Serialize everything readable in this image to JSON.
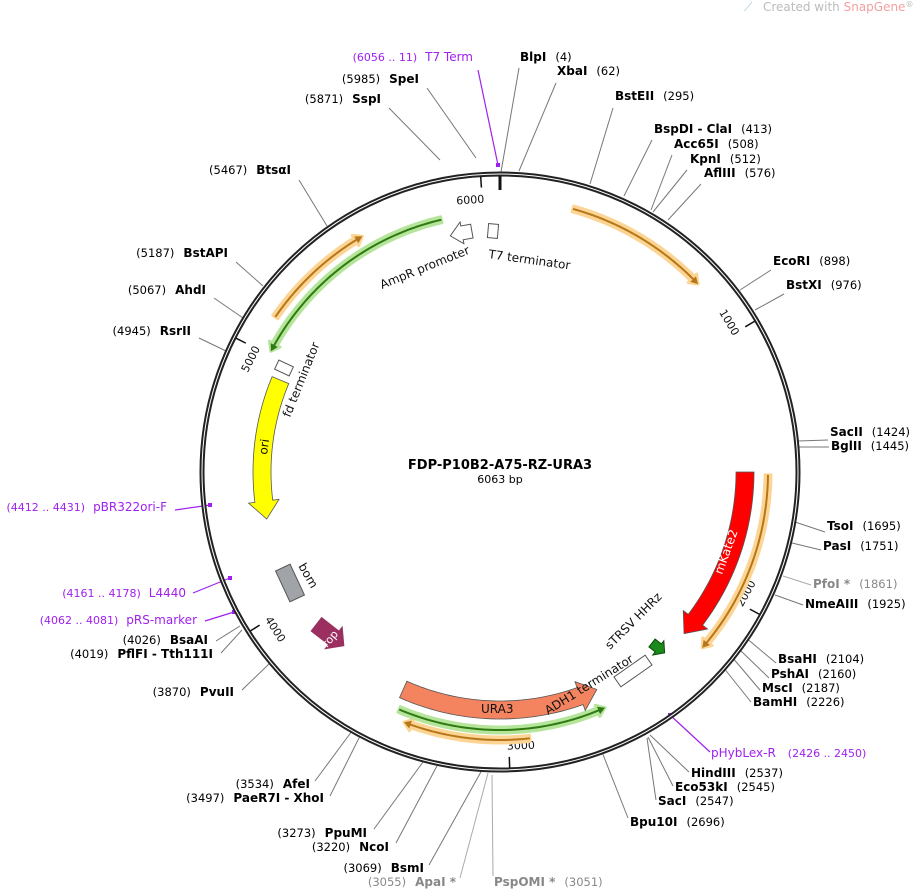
{
  "watermark": {
    "prefix": "Created with ",
    "brand": "SnapGene",
    "suffix": "®"
  },
  "plasmid": {
    "name": "FDP-P10B2-A75-RZ-URA3",
    "length_label": "6063 bp",
    "length": 6063
  },
  "ticks": [
    "1000",
    "2000",
    "3000",
    "4000",
    "5000",
    "6000"
  ],
  "enzymes": [
    {
      "name": "BlpI",
      "pos": "(4)"
    },
    {
      "name": "XbaI",
      "pos": "(62)"
    },
    {
      "name": "BstEII",
      "pos": "(295)"
    },
    {
      "name": "BspDI - ClaI",
      "pos": "(413)"
    },
    {
      "name": "Acc65I",
      "pos": "(508)"
    },
    {
      "name": "KpnI",
      "pos": "(512)"
    },
    {
      "name": "AflIII",
      "pos": "(576)"
    },
    {
      "name": "EcoRI",
      "pos": "(898)"
    },
    {
      "name": "BstXI",
      "pos": "(976)"
    },
    {
      "name": "SacII",
      "pos": "(1424)"
    },
    {
      "name": "BglII",
      "pos": "(1445)"
    },
    {
      "name": "TsoI",
      "pos": "(1695)"
    },
    {
      "name": "PasI",
      "pos": "(1751)"
    },
    {
      "name": "PfoI *",
      "pos": "(1861)"
    },
    {
      "name": "NmeAIII",
      "pos": "(1925)"
    },
    {
      "name": "BsaHI",
      "pos": "(2104)"
    },
    {
      "name": "PshAI",
      "pos": "(2160)"
    },
    {
      "name": "MscI",
      "pos": "(2187)"
    },
    {
      "name": "BamHI",
      "pos": "(2226)"
    },
    {
      "name": "HindIII",
      "pos": "(2537)"
    },
    {
      "name": "Eco53kI",
      "pos": "(2545)"
    },
    {
      "name": "SacI",
      "pos": "(2547)"
    },
    {
      "name": "Bpu10I",
      "pos": "(2696)"
    },
    {
      "name": "SpeI",
      "pos": "(5985)"
    },
    {
      "name": "SspI",
      "pos": "(5871)"
    },
    {
      "name": "BtsαI",
      "pos": "(5467)"
    },
    {
      "name": "BstAPI",
      "pos": "(5187)"
    },
    {
      "name": "AhdI",
      "pos": "(5067)"
    },
    {
      "name": "RsrII",
      "pos": "(4945)"
    },
    {
      "name": "BsaAI",
      "pos": "(4026)"
    },
    {
      "name": "PflFI - Tth111I",
      "pos": "(4019)"
    },
    {
      "name": "PvuII",
      "pos": "(3870)"
    },
    {
      "name": "AfeI",
      "pos": "(3534)"
    },
    {
      "name": "PaeR7I - XhoI",
      "pos": "(3497)"
    },
    {
      "name": "PpuMI",
      "pos": "(3273)"
    },
    {
      "name": "NcoI",
      "pos": "(3220)"
    },
    {
      "name": "BsmI",
      "pos": "(3069)"
    },
    {
      "name": "ApaI *",
      "pos": "(3055)"
    },
    {
      "name": "PspOMI *",
      "pos": "(3051)"
    }
  ],
  "primers": [
    {
      "name": "T7 Term",
      "range": "(6056 .. 11)"
    },
    {
      "name": "pBR322ori-F",
      "range": "(4412 .. 4431)"
    },
    {
      "name": "L4440",
      "range": "(4161 .. 4178)"
    },
    {
      "name": "pRS-marker",
      "range": "(4062 .. 4081)"
    },
    {
      "name": "pHybLex-R",
      "range": "(2426 .. 2450)"
    }
  ],
  "features": {
    "ampr_promoter": "AmpR promoter",
    "t7_terminator": "T7 terminator",
    "fd_terminator": "fd terminator",
    "ori": "ori",
    "bom": "bom",
    "rop": "rop",
    "mkate2": "mKate2",
    "strsv": "sTRSV HHRz",
    "adh1": "ADH1 terminator",
    "ura3": "URA3"
  },
  "colors": {
    "primer": "#a020f0",
    "orf": "#f5a623",
    "green": "#4caf2a",
    "ori": "#ffff00",
    "mkate2": "#ff0000",
    "ura3": "#f4845f",
    "rop": "#9b2f5f",
    "bom": "#a0a4a8"
  }
}
